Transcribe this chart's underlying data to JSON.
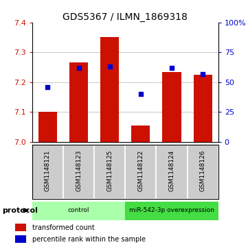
{
  "title": "GDS5367 / ILMN_1869318",
  "samples": [
    "GSM1148121",
    "GSM1148123",
    "GSM1148125",
    "GSM1148122",
    "GSM1148124",
    "GSM1148126"
  ],
  "bar_values": [
    7.1,
    7.265,
    7.35,
    7.055,
    7.235,
    7.225
  ],
  "bar_base": 7.0,
  "percentile_values": [
    46,
    62,
    63,
    40,
    62,
    57
  ],
  "ylim": [
    7.0,
    7.4
  ],
  "yticks_left": [
    7.0,
    7.1,
    7.2,
    7.3,
    7.4
  ],
  "yticks_right": [
    0,
    25,
    50,
    75,
    100
  ],
  "bar_color": "#cc1100",
  "dot_color": "#0000cc",
  "bar_width": 0.6,
  "groups": [
    {
      "label": "control",
      "indices": [
        0,
        1,
        2
      ],
      "color": "#aaffaa"
    },
    {
      "label": "miR-542-3p overexpression",
      "indices": [
        3,
        4,
        5
      ],
      "color": "#44dd44"
    }
  ],
  "protocol_label": "protocol",
  "legend_items": [
    {
      "label": "transformed count",
      "color": "#cc1100"
    },
    {
      "label": "percentile rank within the sample",
      "color": "#0000cc"
    }
  ],
  "title_fontsize": 10,
  "tick_fontsize": 8,
  "sample_fontsize": 6.5,
  "legend_fontsize": 7,
  "protocol_fontsize": 8,
  "background_color": "#ffffff",
  "plot_bg_color": "#ffffff",
  "grid_color": "#555555",
  "label_bg_color": "#cccccc",
  "label_border_color": "#888888"
}
